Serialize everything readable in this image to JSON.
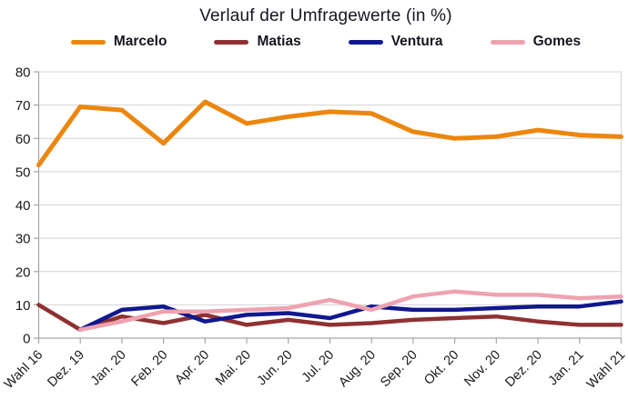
{
  "page": {
    "background": "#ffffff"
  },
  "chart_data": {
    "type": "line",
    "title": "Verlauf der Umfragewerte (in %)",
    "categories": [
      "Wahl 16",
      "Dez. 19",
      "Jan. 20",
      "Feb. 20",
      "Apr. 20",
      "Mai. 20",
      "Jun. 20",
      "Jul. 20",
      "Aug. 20",
      "Sep. 20",
      "Okt. 20",
      "Nov. 20",
      "Dez. 20",
      "Jan. 21",
      "Wahl 21"
    ],
    "series": [
      {
        "name": "Marcelo",
        "color": "#EC860D",
        "stroke_width": 5,
        "values": [
          52,
          69.5,
          68.5,
          58.5,
          71,
          64.5,
          66.5,
          68,
          67.5,
          62,
          60,
          60.5,
          62.5,
          61,
          60.5
        ]
      },
      {
        "name": "Matias",
        "color": "#8F3132",
        "stroke_width": 4.5,
        "values": [
          10,
          2.5,
          6.5,
          4.5,
          7,
          4,
          5.5,
          4,
          4.5,
          5.5,
          6,
          6.5,
          5,
          4,
          4
        ]
      },
      {
        "name": "Ventura",
        "color": "#10188F",
        "stroke_width": 4.5,
        "values": [
          null,
          2.5,
          8.5,
          9.5,
          5,
          7,
          7.5,
          6,
          9.5,
          8.5,
          8.5,
          9,
          9.5,
          9.5,
          11
        ]
      },
      {
        "name": "Gomes",
        "color": "#EFA2B0",
        "stroke_width": 4.5,
        "values": [
          null,
          2.5,
          5,
          8,
          8,
          8.5,
          9,
          11.5,
          8.5,
          12.5,
          14,
          13,
          13,
          12,
          12.5
        ]
      }
    ],
    "ylim": [
      0,
      80
    ],
    "yticks": [
      0,
      10,
      20,
      30,
      40,
      50,
      60,
      70,
      80
    ],
    "grid": true,
    "legend_position": "top",
    "colors": {
      "grid": "#d4d4d4",
      "axis": "#a6a6a6",
      "text": "#1a1a1a"
    }
  }
}
